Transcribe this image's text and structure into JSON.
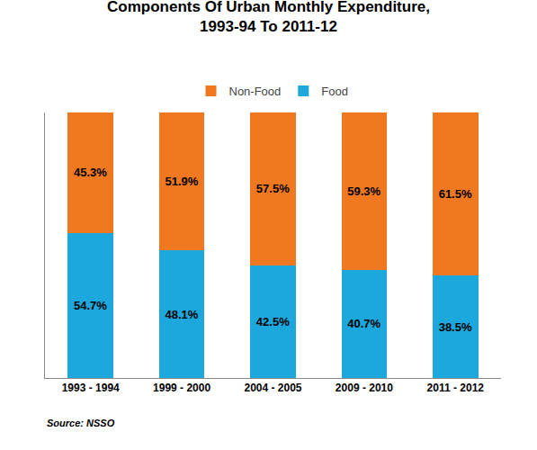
{
  "chart_data": {
    "type": "bar",
    "title": "Components Of Urban Monthly Expenditure,\n1993-94 To 2011-12",
    "categories": [
      "1993 - 1994",
      "1999 - 2000",
      "2004 - 2005",
      "2009 - 2010",
      "2011 - 2012"
    ],
    "series": [
      {
        "name": "Food",
        "color": "#1CA8DD",
        "values": [
          54.7,
          48.1,
          42.5,
          40.7,
          38.5
        ],
        "value_labels": [
          "54.7%",
          "48.1%",
          "42.5%",
          "40.7%",
          "38.5%"
        ]
      },
      {
        "name": "Non-Food",
        "color": "#F07820",
        "values": [
          45.3,
          51.9,
          57.5,
          59.3,
          61.5
        ],
        "value_labels": [
          "45.3%",
          "51.9%",
          "57.5%",
          "59.3%",
          "61.5%"
        ]
      }
    ],
    "stacked": true,
    "ylim": [
      0,
      100
    ],
    "yticks": [],
    "tick_labels": "x",
    "grid": false,
    "legend": "top",
    "data_labels": true,
    "annotations": [
      "Source: NSSO"
    ]
  }
}
